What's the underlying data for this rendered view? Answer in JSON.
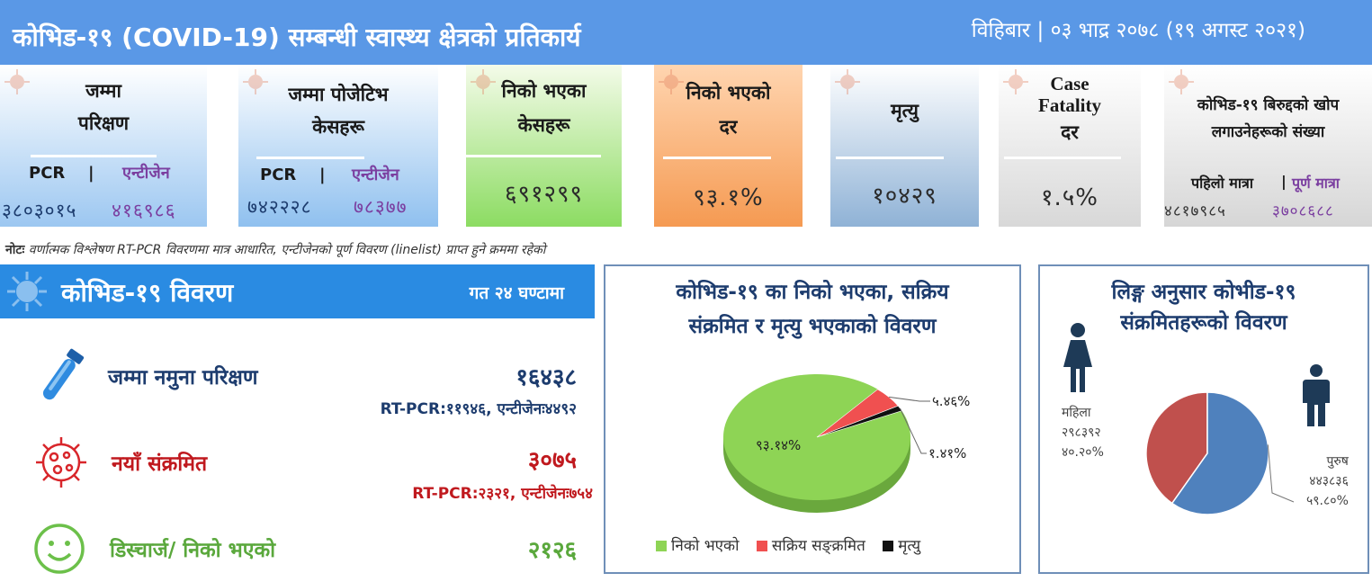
{
  "header": {
    "title": "कोभिड-१९ (COVID-19) सम्बन्धी स्वास्थ्य क्षेत्रको प्रतिकार्य",
    "date": "विहिबार | ०३ भाद्र २०७८ (१९ अगस्ट २०२१)"
  },
  "cards": {
    "total_tests": {
      "title1": "जम्मा",
      "title2": "परिक्षण",
      "sub_left": "PCR",
      "sep": "|",
      "sub_right": "एन्टीजेन",
      "num_left": "३८०३०१५",
      "num_right": "४१६९८६"
    },
    "total_positive": {
      "title1": "जम्मा पोजेटिभ",
      "title2": "केसहरू",
      "sub_left": "PCR",
      "sep": "|",
      "sub_right": "एन्टीजेन",
      "num_left": "७४२२२८",
      "num_right": "७८३७७"
    },
    "recovered": {
      "title1": "निको भएका",
      "title2": "केसहरू",
      "value": "६९१२९९"
    },
    "recovery_rate": {
      "title1": "निको भएको",
      "title2": "दर",
      "value": "९३.१%"
    },
    "deaths": {
      "title1": "मृत्यु",
      "value": "१०४२९"
    },
    "cfr": {
      "title1": "Case",
      "title2": "Fatality",
      "title3": "दर",
      "value": "१.५%"
    },
    "vaccine": {
      "title1": "कोभिड-१९ बिरुद्दको खोप",
      "title2": "लगाउनेहरूको संख्या",
      "sub_left": "पहिलो मात्रा",
      "sep": "|",
      "sub_right": "पूर्ण मात्रा",
      "num_left": "४८१७९८५",
      "num_right": "३७०८६८८"
    }
  },
  "note": {
    "label": "नोटः",
    "text": "वर्णात्मक विश्लेषण RT-PCR विवरणमा मात्र आधारित, एन्टीजेनको पूर्ण विवरण (linelist) प्राप्त हुने क्रममा रहेको"
  },
  "details": {
    "title": "कोभिड-१९ विवरण",
    "period": "गत २४ घण्टामा",
    "tests": {
      "label": "जम्मा नमुना परिक्षण",
      "value": "१६४३८",
      "detail": "RT-PCR:११९४६, एन्टीजेनः४४९२"
    },
    "new_cases": {
      "label": "नयाँ संक्रमित",
      "value": "३०७५",
      "detail": "RT-PCR:२३२१, एन्टीजेनः७५४"
    },
    "discharged": {
      "label": "डिस्चार्ज/ निको भएको",
      "value": "२१२६"
    }
  },
  "colors": {
    "header_bg": "#5a98e6",
    "panel_header_bg": "#2a8be2",
    "recovered": "#8ed455",
    "active": "#f05050",
    "death": "#111111",
    "female": "#c0504d",
    "male": "#4f81bd",
    "navy_text": "#1d3c6e",
    "red_text": "#c0191e",
    "green_text": "#5aa83c"
  },
  "chart_data": [
    {
      "type": "pie",
      "title": "कोभिड-१९ का निको भएका, सक्रिय संक्रमित र मृत्यु भएकाको विवरण",
      "title_line1": "कोभिड-१९ का निको भएका, सक्रिय",
      "title_line2": "संक्रमित र मृत्यु भएकाको विवरण",
      "categories": [
        "निको भएको",
        "सक्रिय सङ्क्रमित",
        "मृत्यु"
      ],
      "values": [
        93.14,
        5.46,
        1.41
      ],
      "labels": [
        "९३.१४%",
        "५.४६%",
        "१.४१%"
      ],
      "legend_position": "bottom"
    },
    {
      "type": "pie",
      "title": "लिङ्ग अनुसार कोभीड-१९ संक्रमितहरूको विवरण",
      "title_line1": "लिङ्ग अनुसार कोभीड-१९",
      "title_line2": "संक्रमितहरूको विवरण",
      "categories": [
        "महिला",
        "पुरुष"
      ],
      "values": [
        40.2,
        59.8
      ],
      "counts": [
        "२९८३९२",
        "४४३८३६"
      ],
      "labels": [
        "४०.२०%",
        "५९.८०%"
      ]
    }
  ]
}
